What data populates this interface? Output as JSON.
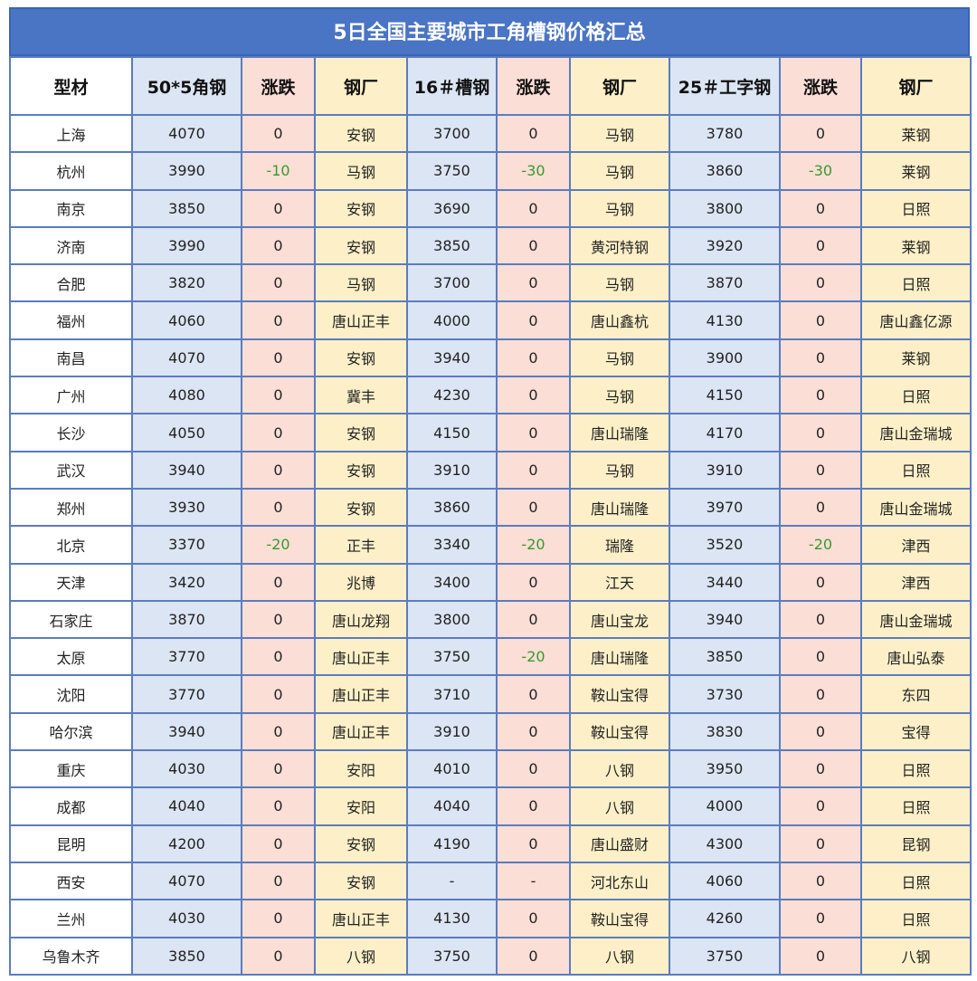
{
  "title": "5日全国主要城市工角槽钢价格汇总",
  "headers": [
    "型材",
    "50*5角钢",
    "涨跌",
    "钢厂",
    "16＃槽钢",
    "涨跌",
    "钢厂",
    "25＃工字钢",
    "涨跌",
    "钢厂"
  ],
  "colors": {
    "title_bg": "#4a74c4",
    "price_bg": "#dbe5f3",
    "change_bg": "#fbded6",
    "mill_bg": "#fdf0c8",
    "negative_text": "#3a9a2a",
    "grid": "#5a7cc0"
  },
  "rows": [
    [
      "上海",
      "4070",
      "0",
      "安钢",
      "3700",
      "0",
      "马钢",
      "3780",
      "0",
      "莱钢"
    ],
    [
      "杭州",
      "3990",
      "-10",
      "马钢",
      "3750",
      "-30",
      "马钢",
      "3860",
      "-30",
      "莱钢"
    ],
    [
      "南京",
      "3850",
      "0",
      "安钢",
      "3690",
      "0",
      "马钢",
      "3800",
      "0",
      "日照"
    ],
    [
      "济南",
      "3990",
      "0",
      "安钢",
      "3850",
      "0",
      "黄河特钢",
      "3920",
      "0",
      "莱钢"
    ],
    [
      "合肥",
      "3820",
      "0",
      "马钢",
      "3700",
      "0",
      "马钢",
      "3870",
      "0",
      "日照"
    ],
    [
      "福州",
      "4060",
      "0",
      "唐山正丰",
      "4000",
      "0",
      "唐山鑫杭",
      "4130",
      "0",
      "唐山鑫亿源"
    ],
    [
      "南昌",
      "4070",
      "0",
      "安钢",
      "3940",
      "0",
      "马钢",
      "3900",
      "0",
      "莱钢"
    ],
    [
      "广州",
      "4080",
      "0",
      "冀丰",
      "4230",
      "0",
      "马钢",
      "4150",
      "0",
      "日照"
    ],
    [
      "长沙",
      "4050",
      "0",
      "安钢",
      "4150",
      "0",
      "唐山瑞隆",
      "4170",
      "0",
      "唐山金瑞城"
    ],
    [
      "武汉",
      "3940",
      "0",
      "安钢",
      "3910",
      "0",
      "马钢",
      "3910",
      "0",
      "日照"
    ],
    [
      "郑州",
      "3930",
      "0",
      "安钢",
      "3860",
      "0",
      "唐山瑞隆",
      "3970",
      "0",
      "唐山金瑞城"
    ],
    [
      "北京",
      "3370",
      "-20",
      "正丰",
      "3340",
      "-20",
      "瑞隆",
      "3520",
      "-20",
      "津西"
    ],
    [
      "天津",
      "3420",
      "0",
      "兆博",
      "3400",
      "0",
      "江天",
      "3440",
      "0",
      "津西"
    ],
    [
      "石家庄",
      "3870",
      "0",
      "唐山龙翔",
      "3800",
      "0",
      "唐山宝龙",
      "3940",
      "0",
      "唐山金瑞城"
    ],
    [
      "太原",
      "3770",
      "0",
      "唐山正丰",
      "3750",
      "-20",
      "唐山瑞隆",
      "3850",
      "0",
      "唐山弘泰"
    ],
    [
      "沈阳",
      "3770",
      "0",
      "唐山正丰",
      "3710",
      "0",
      "鞍山宝得",
      "3730",
      "0",
      "东四"
    ],
    [
      "哈尔滨",
      "3940",
      "0",
      "唐山正丰",
      "3910",
      "0",
      "鞍山宝得",
      "3830",
      "0",
      "宝得"
    ],
    [
      "重庆",
      "4030",
      "0",
      "安阳",
      "4010",
      "0",
      "八钢",
      "3950",
      "0",
      "日照"
    ],
    [
      "成都",
      "4040",
      "0",
      "安阳",
      "4040",
      "0",
      "八钢",
      "4000",
      "0",
      "日照"
    ],
    [
      "昆明",
      "4200",
      "0",
      "安钢",
      "4190",
      "0",
      "唐山盛财",
      "4300",
      "0",
      "昆钢"
    ],
    [
      "西安",
      "4070",
      "0",
      "安钢",
      "-",
      "-",
      "河北东山",
      "4060",
      "0",
      "日照"
    ],
    [
      "兰州",
      "4030",
      "0",
      "唐山正丰",
      "4130",
      "0",
      "鞍山宝得",
      "4260",
      "0",
      "日照"
    ],
    [
      "乌鲁木齐",
      "3850",
      "0",
      "八钢",
      "3750",
      "0",
      "八钢",
      "3750",
      "0",
      "八钢"
    ]
  ]
}
